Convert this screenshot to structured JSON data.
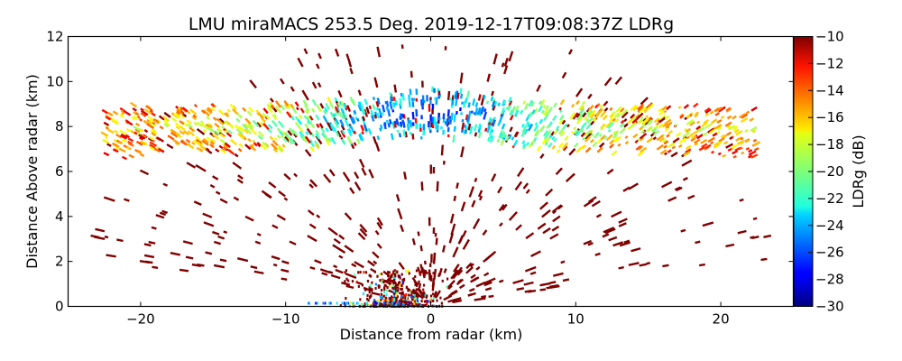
{
  "chart_data": {
    "type": "heatmap",
    "title": "LMU miraMACS 253.5 Deg. 2019-12-17T09:08:37Z  LDRg",
    "xlabel": "Distance from radar (km)",
    "ylabel": "Distance Above radar  (km)",
    "xlim": [
      -25,
      25
    ],
    "ylim": [
      0,
      12
    ],
    "xticks": [
      -20,
      -10,
      0,
      10,
      20
    ],
    "xtick_labels": [
      "−20",
      "−10",
      "0",
      "10",
      "20"
    ],
    "yticks": [
      0,
      2,
      4,
      6,
      8,
      10,
      12
    ],
    "ytick_labels": [
      "0",
      "2",
      "4",
      "6",
      "8",
      "10",
      "12"
    ],
    "grid": false,
    "colorbar": {
      "label": "LDRg (dB)",
      "range": [
        -30,
        -10
      ],
      "colormap": "jet",
      "ticks": [
        -10,
        -12,
        -14,
        -16,
        -18,
        -20,
        -22,
        -24,
        -26,
        -28,
        -30
      ],
      "tick_labels": [
        "−10",
        "−12",
        "−14",
        "−16",
        "−18",
        "−20",
        "−22",
        "−24",
        "−26",
        "−28",
        "−30"
      ],
      "placement": "right"
    },
    "features": [
      {
        "name": "cloud layer",
        "x_range_km": [
          -22.5,
          22.5
        ],
        "height_range_km": [
          6.8,
          9.8
        ],
        "ldr_range_db": [
          -26,
          -12
        ],
        "note": "blue minimum near x=-5..5 km, ~7.5-8 km altitude"
      },
      {
        "name": "sparse clutter / insects",
        "x_range_km": [
          -23,
          22
        ],
        "height_range_km": [
          0,
          11.8
        ],
        "ldr_db": -10
      },
      {
        "name": "near-radar clutter",
        "x_range_km": [
          -8,
          3
        ],
        "height_range_km": [
          0,
          1.5
        ],
        "ldr_range_db": [
          -28,
          -10
        ]
      }
    ]
  }
}
